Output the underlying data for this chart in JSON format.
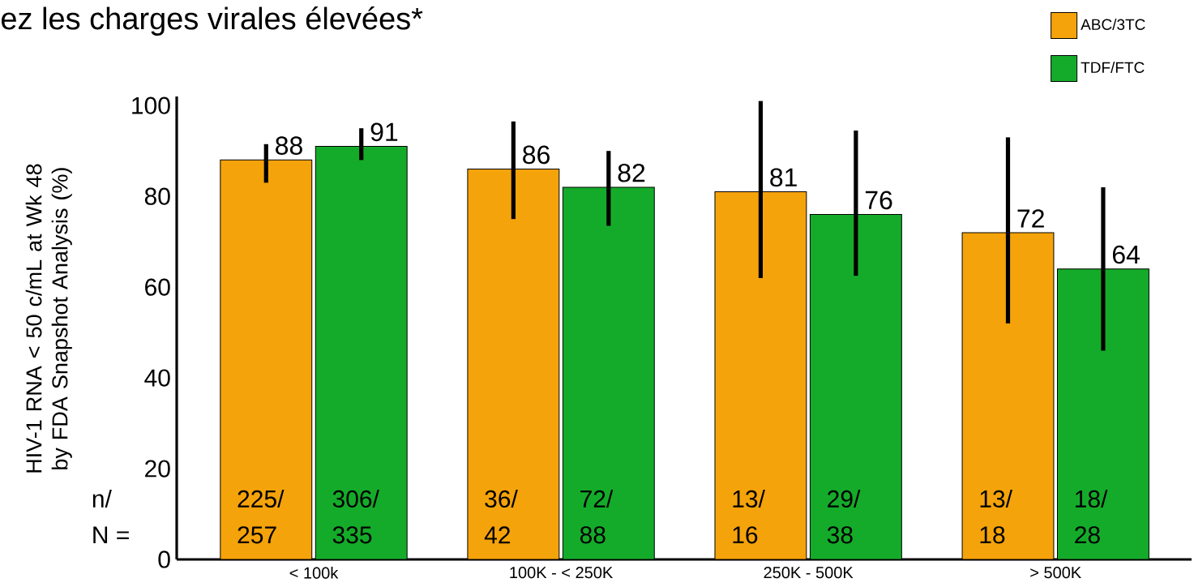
{
  "chart_data": {
    "type": "bar",
    "title": "ez  les charges virales élevées*",
    "ylabel": "HIV-1 RNA < 50 c/mL at Wk 48 by FDA Snapshot Analysis (%)",
    "categories": [
      "< 100k",
      "100K - < 250K",
      "250K - 500K",
      "> 500K"
    ],
    "series": [
      {
        "name": "ABC/3TC",
        "color": "#f5a30a",
        "values": [
          88,
          86,
          81,
          72
        ],
        "errors": [
          [
            83,
            91.5
          ],
          [
            75,
            96.5
          ],
          [
            62,
            101
          ],
          [
            52,
            93
          ]
        ]
      },
      {
        "name": "TDF/FTC",
        "color": "#15ab2a",
        "values": [
          91,
          82,
          76,
          64
        ],
        "errors": [
          [
            88,
            95
          ],
          [
            73.5,
            90
          ],
          [
            62.5,
            94.5
          ],
          [
            46,
            82
          ]
        ]
      }
    ],
    "ylim": [
      0,
      102
    ],
    "yticks": [
      0,
      20,
      40,
      60,
      80,
      100
    ],
    "data_labels": true,
    "legend": "top right",
    "annotations": [
      "n/",
      "N =",
      "225/",
      "257",
      "306/",
      "335",
      "36/",
      "42",
      "72/",
      "88",
      "13/",
      "16",
      "29/",
      "38",
      "13/",
      "18",
      "18/",
      "28"
    ]
  }
}
